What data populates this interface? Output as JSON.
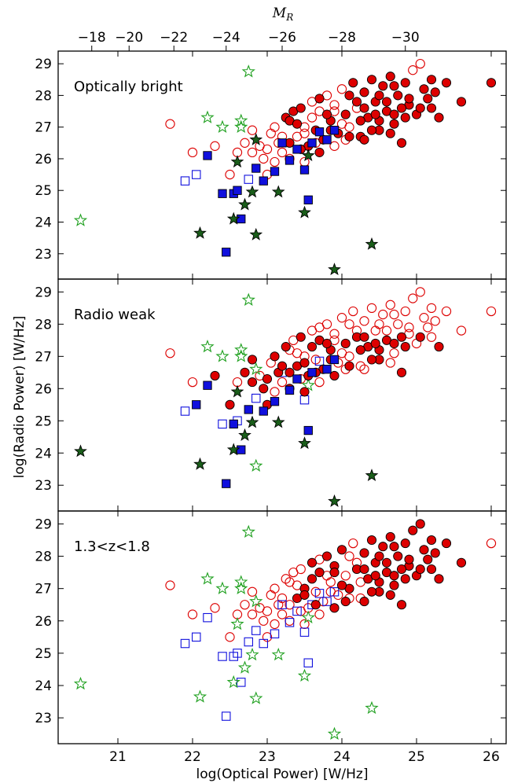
{
  "chart_data": {
    "type": "scatter",
    "xlabel": "log(Optical Power) [W/Hz]",
    "ylabel": "log(Radio Power) [W/Hz]",
    "top_xlabel": "M",
    "top_xlabel_sub": "R",
    "xlim": [
      20.2,
      26.2
    ],
    "ylim": [
      22.2,
      29.4
    ],
    "x_ticks": [
      21,
      22,
      23,
      24,
      25,
      26
    ],
    "y_ticks": [
      23,
      24,
      25,
      26,
      27,
      28,
      29
    ],
    "top_ticks": [
      {
        "label": "−18",
        "x": 20.65
      },
      {
        "label": "−20",
        "x": 21.15
      },
      {
        "label": "−22",
        "x": 21.75
      },
      {
        "label": "−24",
        "x": 22.45
      },
      {
        "label": "−26",
        "x": 23.2
      },
      {
        "label": "−28",
        "x": 24.0
      },
      {
        "label": "−30",
        "x": 24.85
      }
    ],
    "colors": {
      "qso": "#dd0000",
      "galaxy": "#1010dd",
      "star": "#1a5e1a",
      "star_open": "#1fa01f"
    },
    "panels": [
      {
        "label": "Optically bright",
        "filled_qso_min_x": 23.5,
        "filled_gal_min_x": 23.25,
        "filled_star_mode": "bright"
      },
      {
        "label": "Radio weak",
        "filled_qso_max_y": 27.2,
        "filled_gal_mode": "weak",
        "filled_star_mode": "weak"
      },
      {
        "label": "1.3<z<1.8",
        "filled_qso_mode": "zbin",
        "filled_gal_mode": "none",
        "filled_star_mode": "none"
      }
    ],
    "series": [
      {
        "name": "",
        "marker": "circle",
        "points": [
          [
            21.7,
            27.1
          ],
          [
            22.0,
            26.2
          ],
          [
            22.3,
            26.4
          ],
          [
            22.5,
            25.5
          ],
          [
            22.6,
            26.2
          ],
          [
            22.7,
            26.5
          ],
          [
            22.8,
            26.9
          ],
          [
            22.9,
            26.4
          ],
          [
            22.95,
            26.0
          ],
          [
            23.0,
            25.5
          ],
          [
            23.05,
            26.8
          ],
          [
            23.1,
            27.0
          ],
          [
            23.15,
            26.5
          ],
          [
            23.2,
            26.2
          ],
          [
            23.25,
            27.3
          ],
          [
            23.3,
            26.0
          ],
          [
            23.35,
            27.5
          ],
          [
            23.4,
            26.7
          ],
          [
            23.45,
            27.6
          ],
          [
            23.5,
            27.0
          ],
          [
            23.55,
            26.4
          ],
          [
            23.6,
            27.8
          ],
          [
            23.65,
            26.9
          ],
          [
            23.7,
            27.5
          ],
          [
            23.75,
            26.6
          ],
          [
            23.8,
            28.0
          ],
          [
            23.85,
            27.2
          ],
          [
            23.9,
            27.7
          ],
          [
            23.95,
            26.8
          ],
          [
            24.0,
            28.2
          ],
          [
            24.05,
            27.4
          ],
          [
            24.1,
            27.0
          ],
          [
            24.15,
            28.4
          ],
          [
            24.2,
            27.6
          ],
          [
            24.25,
            26.7
          ],
          [
            24.3,
            28.1
          ],
          [
            24.35,
            27.3
          ],
          [
            24.4,
            28.5
          ],
          [
            24.45,
            27.8
          ],
          [
            24.5,
            26.9
          ],
          [
            24.55,
            28.3
          ],
          [
            24.6,
            27.5
          ],
          [
            24.65,
            28.6
          ],
          [
            24.7,
            27.1
          ],
          [
            24.75,
            28.0
          ],
          [
            24.8,
            26.5
          ],
          [
            24.85,
            28.4
          ],
          [
            24.9,
            27.7
          ],
          [
            24.95,
            28.8
          ],
          [
            25.0,
            27.4
          ],
          [
            25.05,
            29.0
          ],
          [
            25.1,
            28.2
          ],
          [
            25.15,
            27.9
          ],
          [
            25.2,
            28.5
          ],
          [
            25.3,
            27.3
          ],
          [
            25.4,
            28.4
          ],
          [
            25.6,
            27.8
          ],
          [
            26.0,
            28.4
          ],
          [
            23.3,
            27.2
          ],
          [
            23.5,
            26.8
          ],
          [
            23.7,
            27.9
          ],
          [
            23.9,
            27.5
          ],
          [
            24.1,
            28.0
          ],
          [
            24.3,
            27.6
          ],
          [
            24.5,
            28.0
          ],
          [
            24.7,
            28.3
          ],
          [
            24.9,
            27.9
          ],
          [
            25.25,
            28.1
          ],
          [
            23.0,
            26.3
          ],
          [
            23.2,
            26.7
          ],
          [
            23.4,
            27.1
          ],
          [
            23.6,
            27.3
          ],
          [
            23.8,
            27.4
          ],
          [
            24.0,
            27.1
          ],
          [
            24.2,
            27.8
          ],
          [
            24.4,
            26.9
          ],
          [
            24.6,
            27.8
          ],
          [
            24.8,
            27.6
          ],
          [
            22.8,
            26.2
          ],
          [
            23.1,
            25.9
          ],
          [
            23.3,
            26.5
          ],
          [
            23.5,
            25.9
          ],
          [
            23.7,
            26.2
          ],
          [
            23.9,
            26.4
          ],
          [
            24.1,
            26.7
          ],
          [
            24.3,
            26.6
          ],
          [
            24.5,
            27.2
          ],
          [
            24.7,
            27.4
          ],
          [
            23.45,
            26.3
          ],
          [
            23.65,
            26.5
          ],
          [
            23.85,
            26.9
          ],
          [
            24.05,
            26.6
          ],
          [
            24.25,
            27.2
          ],
          [
            24.45,
            27.4
          ],
          [
            24.65,
            26.8
          ],
          [
            24.85,
            27.3
          ],
          [
            25.05,
            27.6
          ],
          [
            25.2,
            27.6
          ]
        ]
      },
      {
        "name": "",
        "marker": "square",
        "points": [
          [
            21.9,
            25.3
          ],
          [
            22.05,
            25.5
          ],
          [
            22.2,
            26.1
          ],
          [
            22.4,
            24.9
          ],
          [
            22.45,
            23.05
          ],
          [
            22.55,
            24.9
          ],
          [
            22.6,
            25.0
          ],
          [
            22.65,
            24.1
          ],
          [
            22.75,
            25.35
          ],
          [
            22.85,
            25.7
          ],
          [
            22.95,
            25.3
          ],
          [
            23.1,
            25.6
          ],
          [
            23.2,
            26.5
          ],
          [
            23.3,
            25.95
          ],
          [
            23.4,
            26.3
          ],
          [
            23.5,
            25.65
          ],
          [
            23.55,
            24.7
          ],
          [
            23.6,
            26.5
          ],
          [
            23.7,
            26.85
          ],
          [
            23.8,
            26.6
          ],
          [
            23.9,
            26.9
          ]
        ]
      },
      {
        "name": "",
        "marker": "star",
        "points": [
          [
            20.5,
            24.05
          ],
          [
            22.1,
            23.65
          ],
          [
            22.2,
            27.3
          ],
          [
            22.4,
            27.0
          ],
          [
            22.55,
            24.1
          ],
          [
            22.6,
            25.9
          ],
          [
            22.65,
            27.2
          ],
          [
            22.65,
            27.0
          ],
          [
            22.7,
            24.55
          ],
          [
            22.75,
            28.75
          ],
          [
            22.8,
            24.95
          ],
          [
            22.85,
            23.6
          ],
          [
            22.85,
            26.6
          ],
          [
            23.15,
            24.95
          ],
          [
            23.5,
            24.3
          ],
          [
            23.55,
            26.1
          ],
          [
            23.9,
            22.5
          ],
          [
            24.4,
            23.3
          ]
        ]
      }
    ]
  }
}
